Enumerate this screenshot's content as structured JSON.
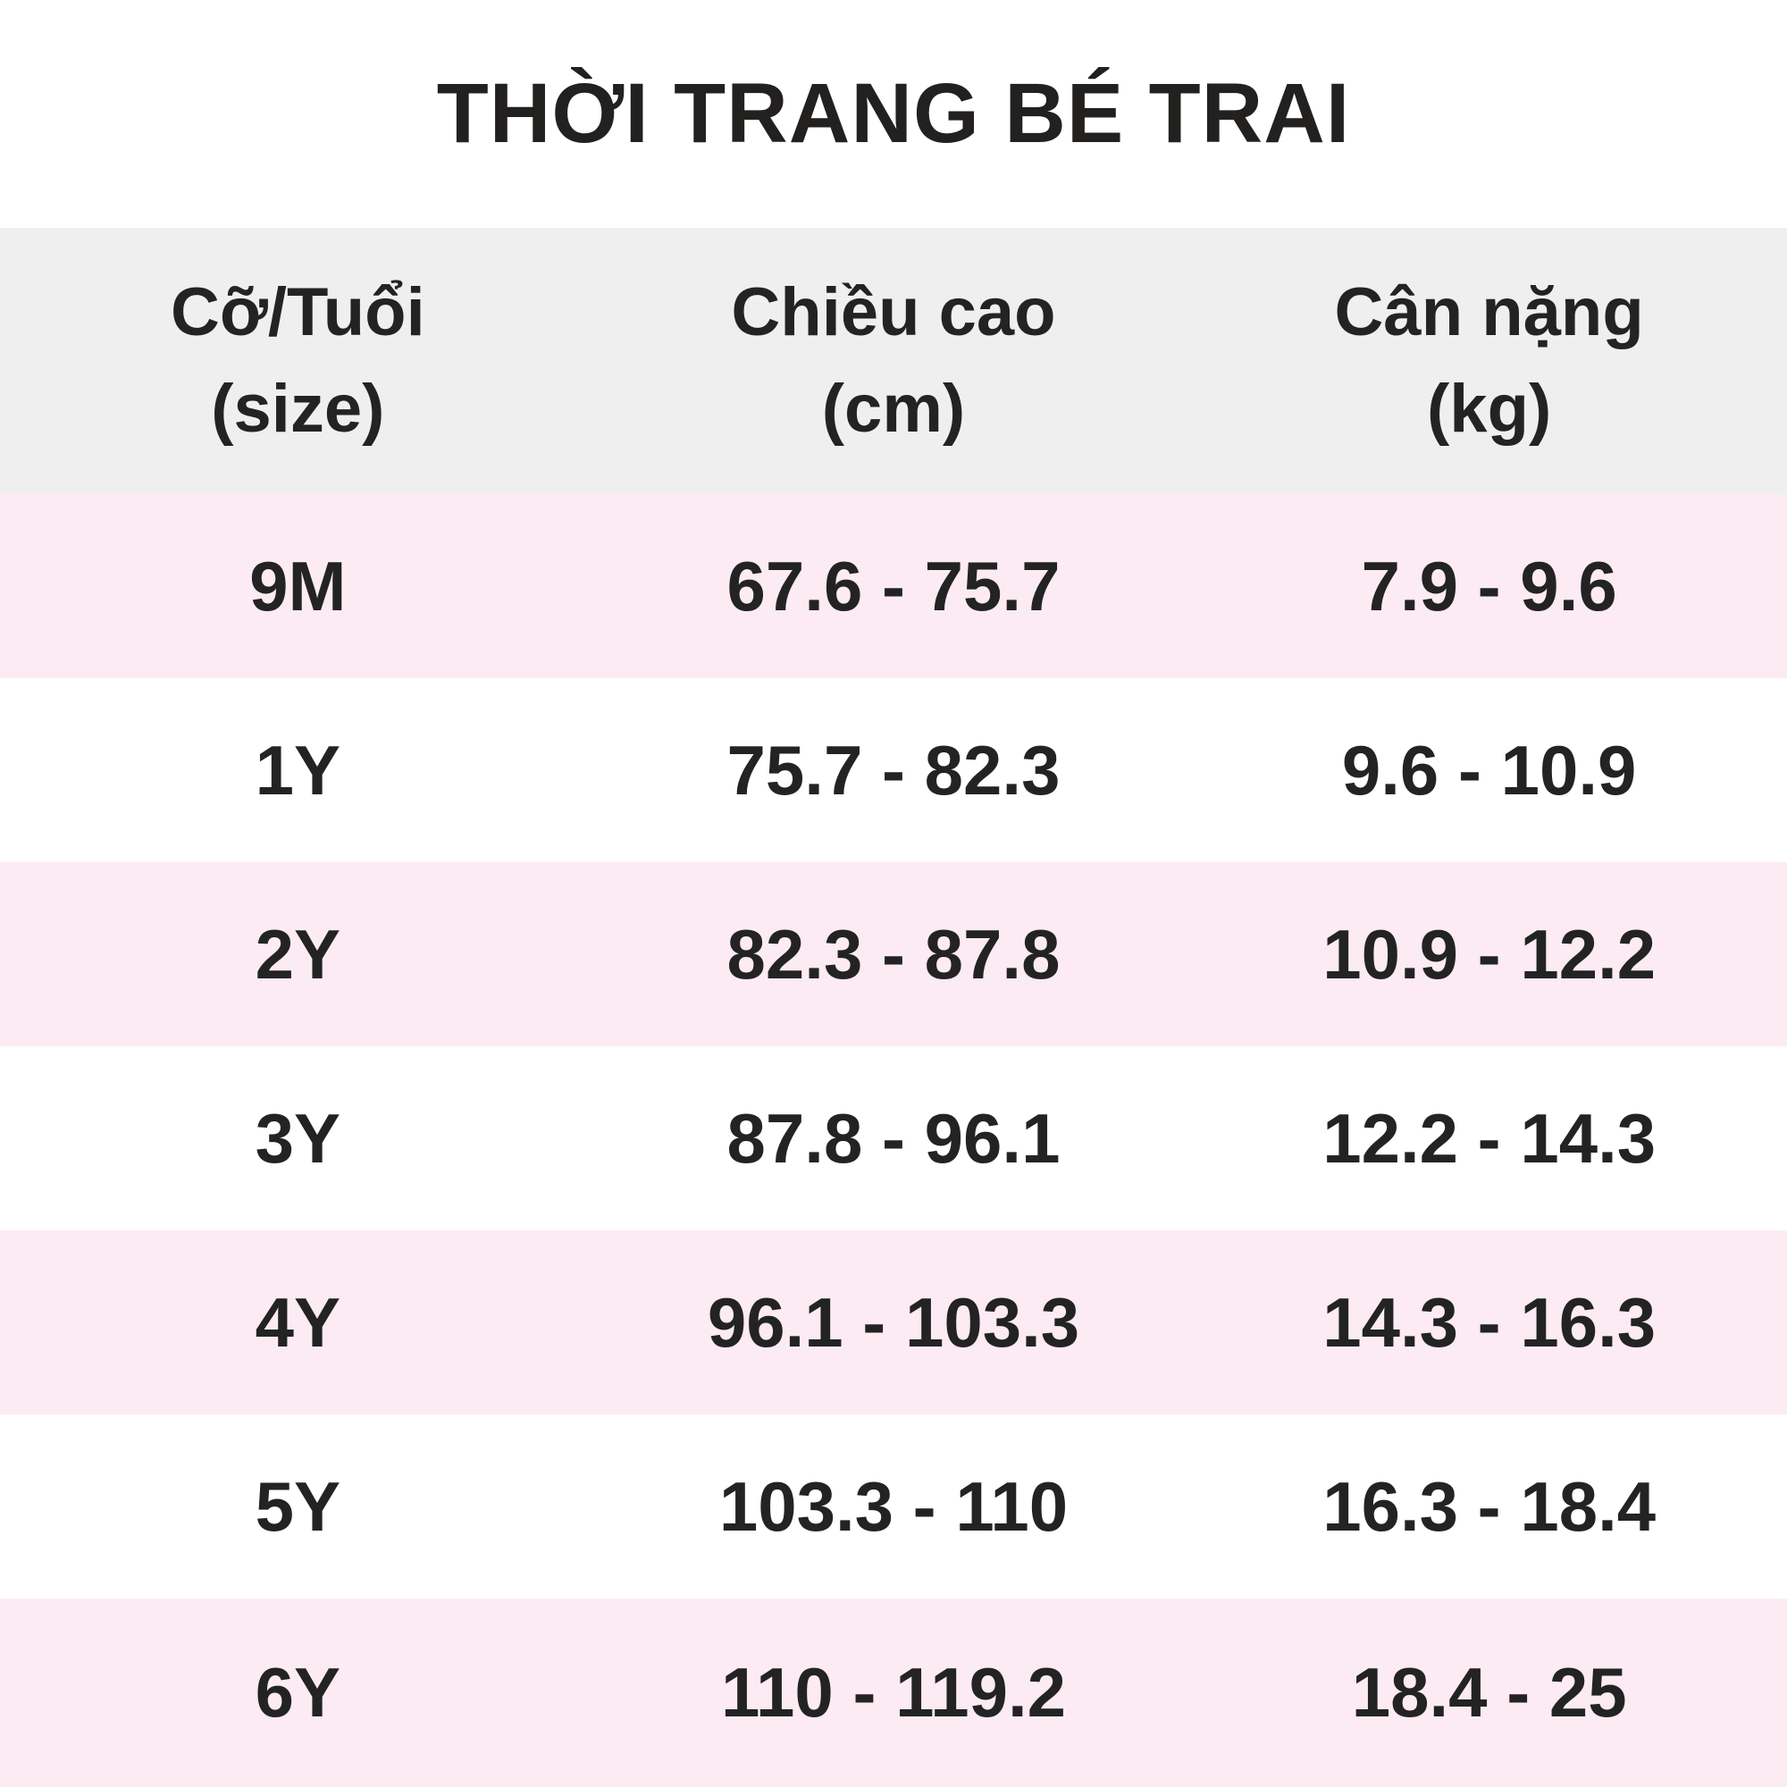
{
  "chart_data": {
    "type": "table",
    "title": "THỜI TRANG BÉ TRAI",
    "columns": [
      {
        "label": "Cỡ/Tuổi",
        "unit": "(size)"
      },
      {
        "label": "Chiều cao",
        "unit": "(cm)"
      },
      {
        "label": "Cân nặng",
        "unit": "(kg)"
      }
    ],
    "rows": [
      [
        "9M",
        "67.6 - 75.7",
        "7.9 - 9.6"
      ],
      [
        "1Y",
        "75.7 - 82.3",
        "9.6 - 10.9"
      ],
      [
        "2Y",
        "82.3 - 87.8",
        "10.9 - 12.2"
      ],
      [
        "3Y",
        "87.8 - 96.1",
        "12.2 - 14.3"
      ],
      [
        "4Y",
        "96.1 - 103.3",
        "14.3 - 16.3"
      ],
      [
        "5Y",
        "103.3 - 110",
        "16.3 - 18.4"
      ],
      [
        "6Y",
        "110 - 119.2",
        "18.4 - 25"
      ]
    ],
    "layout": {
      "header_background": "#efefef",
      "row_background": "#ffffff",
      "row_alt_background": "#fcebf3",
      "text_color": "#232323",
      "stripe_pattern": "rows 1Y, 3Y, 5Y pink; others white"
    }
  }
}
